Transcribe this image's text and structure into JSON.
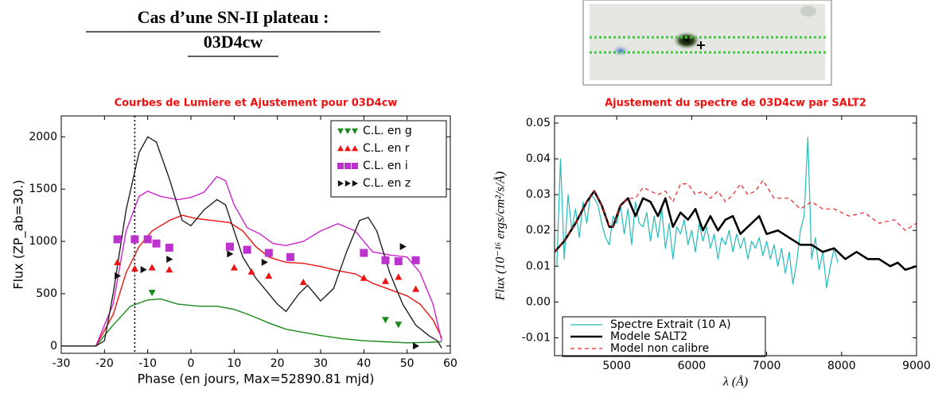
{
  "header": {
    "title_line1": "Cas d’une SN-II plateau :",
    "title_line2": "03D4cw"
  },
  "chart_data": [
    {
      "type": "scatter",
      "title": "Courbes de Lumiere et Ajustement pour 03D4cw",
      "x_label": "Phase (en jours, Max=52890.81 mjd)",
      "y_label": "Flux (ZP_ab=30.)",
      "xlim": [
        -30,
        60
      ],
      "ylim": [
        -70,
        2200
      ],
      "xticks": [
        -30,
        -20,
        -10,
        0,
        10,
        20,
        30,
        40,
        50,
        60
      ],
      "yticks": [
        0,
        500,
        1000,
        1500,
        2000
      ],
      "vline": -13,
      "legend": "upper right",
      "series": [
        {
          "name": "C.L. en g",
          "color": "#1a8a1a",
          "marker": "v",
          "x": [
            -9,
            45,
            48
          ],
          "values": [
            510,
            250,
            205
          ]
        },
        {
          "name": "C.L. en r",
          "color": "#ee1111",
          "marker": "^",
          "x": [
            -17,
            -13,
            -9,
            -5,
            10,
            14,
            18,
            26,
            40,
            45,
            48,
            52
          ],
          "values": [
            800,
            740,
            750,
            730,
            750,
            710,
            670,
            610,
            650,
            620,
            660,
            545
          ]
        },
        {
          "name": "C.L. en i",
          "color": "#bb33cc",
          "marker": "s",
          "x": [
            -17,
            -13,
            -10,
            -8,
            -5,
            9,
            13,
            18,
            23,
            40,
            45,
            48,
            52
          ],
          "values": [
            1020,
            1020,
            1020,
            980,
            940,
            950,
            920,
            890,
            850,
            890,
            820,
            810,
            820
          ]
        },
        {
          "name": "C.L. en z",
          "color": "#111111",
          "marker": ">",
          "x": [
            -17,
            -11,
            -5,
            9,
            17,
            49,
            52
          ],
          "values": [
            670,
            730,
            830,
            880,
            800,
            950,
            0
          ]
        }
      ],
      "curves": [
        {
          "color": "#1a8a1a",
          "x": [
            -30,
            -22,
            -18,
            -14,
            -10,
            -7,
            -3,
            2,
            6,
            10,
            14,
            18,
            22,
            26,
            30,
            35,
            40,
            45,
            50,
            55,
            58
          ],
          "values": [
            0,
            0,
            200,
            380,
            440,
            450,
            400,
            380,
            380,
            350,
            290,
            220,
            160,
            130,
            100,
            70,
            50,
            40,
            30,
            35,
            40
          ]
        },
        {
          "color": "#ee1111",
          "x": [
            -30,
            -22,
            -18,
            -15,
            -12,
            -9,
            -5,
            -2,
            1,
            5,
            9,
            12,
            15,
            18,
            22,
            26,
            30,
            34,
            38,
            42,
            46,
            50,
            53,
            56,
            58
          ],
          "values": [
            0,
            0,
            300,
            700,
            950,
            1100,
            1200,
            1250,
            1220,
            1200,
            1180,
            1100,
            950,
            850,
            800,
            790,
            760,
            720,
            690,
            600,
            540,
            480,
            400,
            250,
            80
          ]
        },
        {
          "color": "#cc22cc",
          "x": [
            -30,
            -22,
            -18,
            -15,
            -12,
            -10,
            -7,
            -3,
            0,
            3,
            6,
            8,
            10,
            13,
            16,
            19,
            22,
            26,
            30,
            34,
            38,
            42,
            46,
            50,
            53,
            56,
            58
          ],
          "values": [
            0,
            0,
            400,
            1100,
            1430,
            1480,
            1430,
            1400,
            1420,
            1470,
            1620,
            1580,
            1350,
            1130,
            1070,
            980,
            960,
            1000,
            1100,
            1170,
            1100,
            900,
            870,
            850,
            700,
            400,
            50
          ]
        },
        {
          "color": "#222222",
          "x": [
            -30,
            -22,
            -20,
            -18,
            -15,
            -12,
            -10,
            -8,
            -5,
            -2,
            0,
            3,
            6,
            8,
            10,
            12,
            15,
            18,
            20,
            22,
            25,
            27,
            30,
            33,
            36,
            39,
            41,
            43,
            46,
            49,
            52,
            55,
            57,
            58
          ],
          "values": [
            0,
            0,
            50,
            500,
            1300,
            1850,
            2000,
            1950,
            1600,
            1200,
            1150,
            1300,
            1400,
            1350,
            1100,
            850,
            650,
            500,
            400,
            330,
            500,
            580,
            430,
            550,
            900,
            1200,
            1230,
            1100,
            700,
            400,
            200,
            100,
            50,
            -20
          ]
        }
      ]
    },
    {
      "type": "line",
      "title": "Ajustement du spectre de 03D4cw par SALT2",
      "x_label": "λ (Å)",
      "y_label": "Flux (10⁻¹⁶ ergs/cm²/s/Å)",
      "xlim": [
        4170,
        9000
      ],
      "ylim": [
        -0.015,
        0.052
      ],
      "xticks": [
        5000,
        6000,
        7000,
        8000,
        9000
      ],
      "yticks": [
        -0.01,
        {
          "value": 0,
          "label": "0.00"
        },
        0.01,
        0.02,
        0.03,
        0.04,
        0.05
      ],
      "legend": "lower left",
      "series": [
        {
          "name": "Spectre Extrait (10 A)",
          "color": "#22bbbb",
          "style": "solid",
          "width": 1.2,
          "x": [
            4200,
            4250,
            4300,
            4350,
            4400,
            4450,
            4500,
            4550,
            4600,
            4650,
            4700,
            4750,
            4800,
            4850,
            4900,
            4950,
            5000,
            5050,
            5100,
            5150,
            5200,
            5250,
            5300,
            5350,
            5400,
            5450,
            5500,
            5550,
            5600,
            5650,
            5700,
            5750,
            5800,
            5850,
            5900,
            5950,
            6000,
            6050,
            6100,
            6150,
            6200,
            6250,
            6300,
            6350,
            6400,
            6450,
            6500,
            6550,
            6600,
            6650,
            6700,
            6750,
            6800,
            6850,
            6900,
            6950,
            7000,
            7050,
            7100,
            7150,
            7200,
            7250,
            7300,
            7350,
            7400,
            7450,
            7500,
            7550,
            7600,
            7650,
            7700,
            7750,
            7800,
            7850,
            7900,
            7950
          ],
          "values": [
            0.01,
            0.04,
            0.012,
            0.03,
            0.02,
            0.026,
            0.018,
            0.028,
            0.022,
            0.03,
            0.029,
            0.027,
            0.022,
            0.018,
            0.016,
            0.024,
            0.022,
            0.027,
            0.019,
            0.026,
            0.016,
            0.028,
            0.022,
            0.021,
            0.025,
            0.017,
            0.024,
            0.018,
            0.026,
            0.015,
            0.022,
            0.012,
            0.021,
            0.019,
            0.023,
            0.016,
            0.02,
            0.014,
            0.022,
            0.017,
            0.021,
            0.015,
            0.019,
            0.012,
            0.018,
            0.016,
            0.02,
            0.014,
            0.019,
            0.015,
            0.018,
            0.012,
            0.017,
            0.015,
            0.018,
            0.013,
            0.017,
            0.012,
            0.016,
            0.01,
            0.015,
            0.008,
            0.014,
            0.005,
            0.011,
            0.02,
            0.024,
            0.046,
            0.012,
            0.018,
            0.009,
            0.014,
            0.004,
            0.01,
            0.015,
            0.011
          ]
        },
        {
          "name": "Modele SALT2",
          "color": "#000000",
          "style": "solid",
          "width": 2.6,
          "x": [
            4170,
            4300,
            4450,
            4600,
            4700,
            4800,
            4900,
            4950,
            5050,
            5150,
            5250,
            5350,
            5450,
            5550,
            5650,
            5750,
            5850,
            5950,
            6050,
            6150,
            6250,
            6350,
            6450,
            6550,
            6650,
            6750,
            6900,
            7000,
            7150,
            7300,
            7450,
            7600,
            7750,
            7900,
            8050,
            8200,
            8350,
            8500,
            8650,
            8750,
            8850,
            9000
          ],
          "values": [
            0.014,
            0.017,
            0.022,
            0.028,
            0.031,
            0.027,
            0.021,
            0.021,
            0.027,
            0.029,
            0.024,
            0.029,
            0.028,
            0.024,
            0.029,
            0.021,
            0.025,
            0.023,
            0.026,
            0.02,
            0.024,
            0.02,
            0.023,
            0.024,
            0.019,
            0.021,
            0.024,
            0.019,
            0.02,
            0.018,
            0.016,
            0.016,
            0.014,
            0.015,
            0.012,
            0.014,
            0.012,
            0.012,
            0.01,
            0.011,
            0.009,
            0.01
          ]
        },
        {
          "name": "Model non calibre",
          "color": "#ee2222",
          "style": "dashed",
          "width": 1.2,
          "x": [
            4170,
            4300,
            4450,
            4600,
            4700,
            4800,
            4900,
            4950,
            5050,
            5150,
            5250,
            5350,
            5450,
            5550,
            5650,
            5750,
            5850,
            5950,
            6050,
            6150,
            6250,
            6350,
            6450,
            6550,
            6650,
            6750,
            6850,
            6950,
            7100,
            7300,
            7450,
            7600,
            7750,
            7900,
            8100,
            8300,
            8500,
            8700,
            8850,
            9000
          ],
          "values": [
            0.014,
            0.017,
            0.022,
            0.028,
            0.031,
            0.027,
            0.021,
            0.021,
            0.027,
            0.029,
            0.029,
            0.032,
            0.031,
            0.03,
            0.031,
            0.028,
            0.033,
            0.033,
            0.03,
            0.031,
            0.029,
            0.031,
            0.028,
            0.03,
            0.033,
            0.03,
            0.031,
            0.034,
            0.029,
            0.029,
            0.026,
            0.028,
            0.026,
            0.026,
            0.024,
            0.025,
            0.022,
            0.023,
            0.02,
            0.022
          ]
        }
      ]
    }
  ]
}
